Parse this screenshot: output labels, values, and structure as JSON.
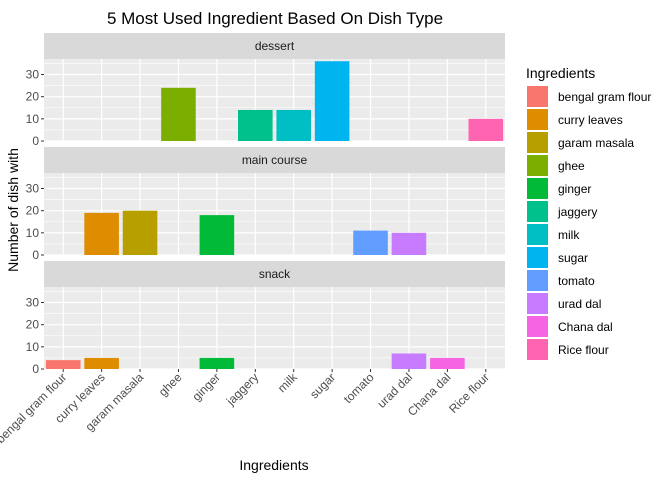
{
  "chart_data": {
    "type": "bar",
    "title": "5 Most Used Ingredient Based On Dish Type",
    "xlabel": "Ingredients",
    "ylabel": "Number of dish with",
    "ylim": [
      0,
      37
    ],
    "yticks": [
      0,
      10,
      20,
      30
    ],
    "grid": true,
    "legend_position": "right",
    "legend_title": "Ingredients",
    "categories": [
      "bengal gram flour",
      "curry leaves",
      "garam masala",
      "ghee",
      "ginger",
      "jaggery",
      "milk",
      "sugar",
      "tomato",
      "urad dal",
      "Chana dal",
      "Rice flour"
    ],
    "colors": [
      "#F8766D",
      "#DE8C00",
      "#B79F00",
      "#7CAE00",
      "#00BA38",
      "#00C08B",
      "#00BFC4",
      "#00B4F0",
      "#619CFF",
      "#C77CFF",
      "#F564E3",
      "#FF64B0"
    ],
    "panels": [
      {
        "name": "dessert",
        "values": [
          null,
          null,
          null,
          24,
          null,
          14,
          14,
          36,
          null,
          null,
          null,
          10
        ]
      },
      {
        "name": "main course",
        "values": [
          null,
          19,
          20,
          null,
          18,
          null,
          null,
          null,
          11,
          10,
          null,
          null
        ]
      },
      {
        "name": "snack",
        "values": [
          4,
          5,
          null,
          null,
          5,
          null,
          null,
          null,
          null,
          7,
          5,
          null
        ]
      }
    ]
  }
}
